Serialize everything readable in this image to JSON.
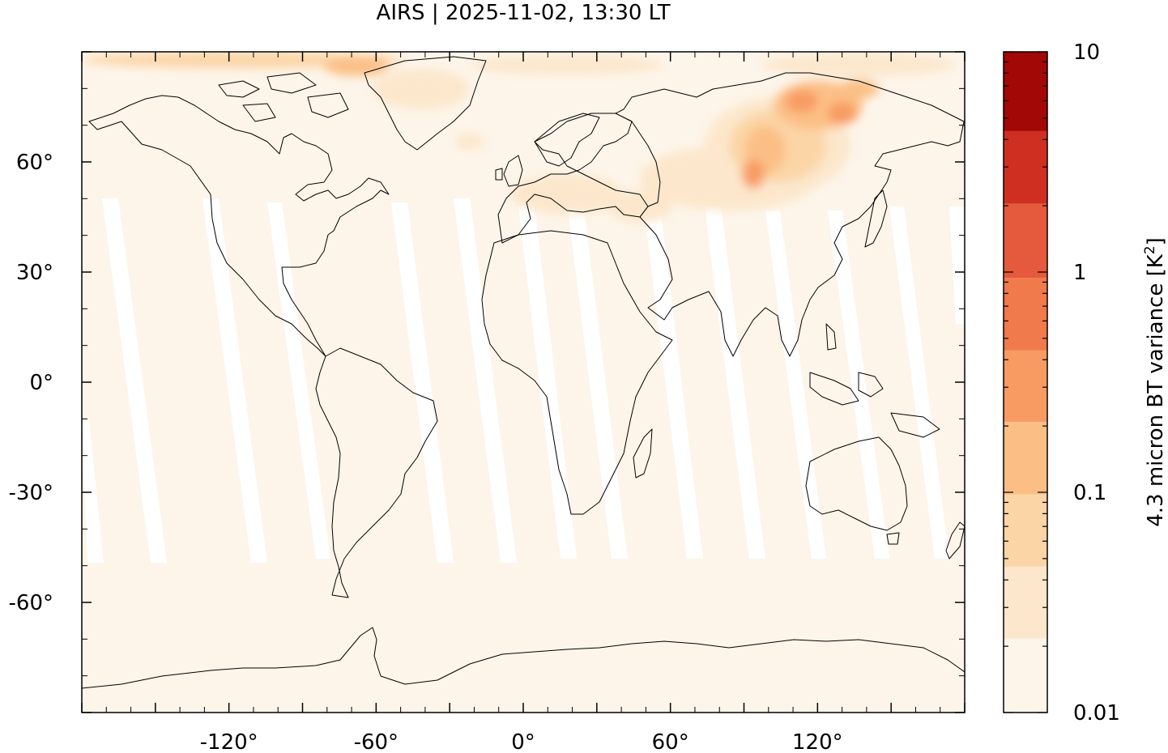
{
  "title": "AIRS | 2025-11-02, 13:30 LT",
  "map": {
    "lon_range": [
      -180,
      180
    ],
    "lat_range": [
      -90,
      90
    ],
    "x_ticks": [
      -120,
      -60,
      0,
      60,
      120
    ],
    "y_ticks": [
      60,
      30,
      0,
      -30,
      -60
    ],
    "x_tick_labels": [
      "-120°",
      "-60°",
      "0°",
      "60°",
      "120°"
    ],
    "y_tick_labels": [
      "60°",
      "30°",
      "0°",
      "-30°",
      "-60°"
    ],
    "background_color": "#fdf5ea",
    "gap_color": "#ffffff",
    "coastline_color": "#000000"
  },
  "colorbar": {
    "label": "4.3 micron BT variance [K²]",
    "scale": "log",
    "range": [
      0.01,
      10
    ],
    "tick_labels": [
      "10",
      "1",
      "0.1",
      "0.01"
    ],
    "tick_values": [
      10,
      1,
      0.1,
      0.01
    ],
    "colors": [
      "#fdf5ea",
      "#fce7cc",
      "#fbd5a6",
      "#fbbf86",
      "#f89b63",
      "#f07a4c",
      "#e55a3c",
      "#cf2f20",
      "#a10806"
    ]
  }
}
